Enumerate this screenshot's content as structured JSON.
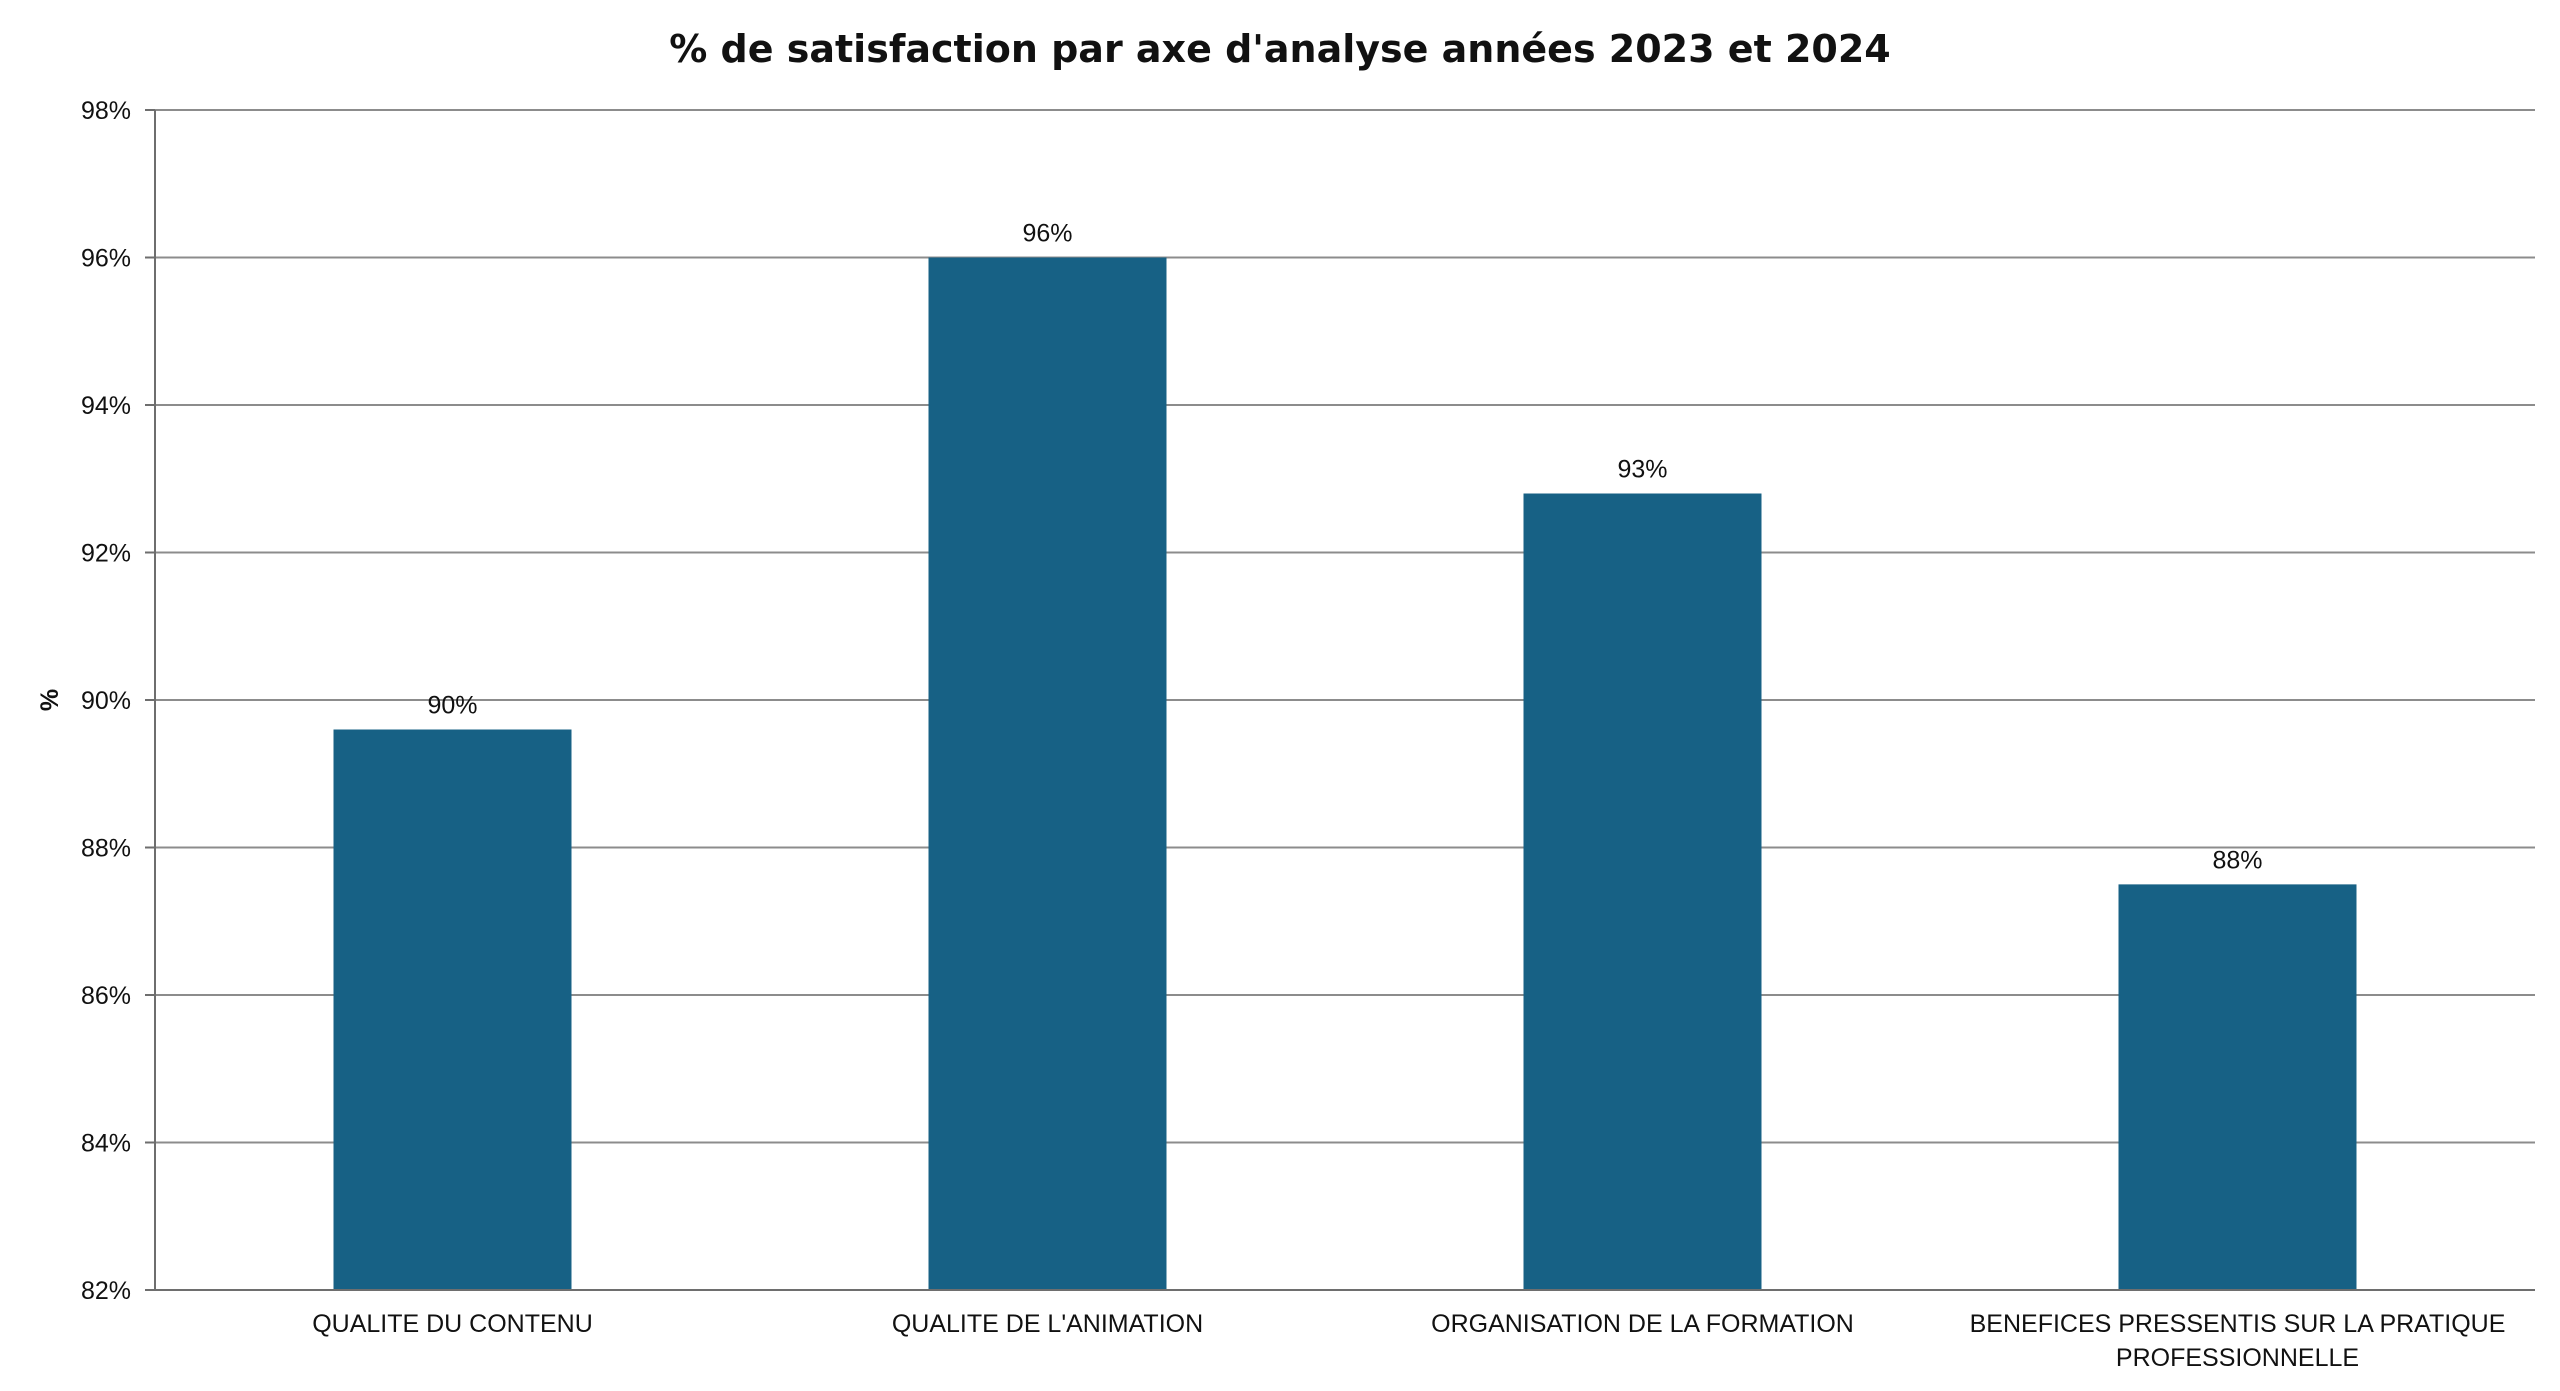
{
  "chart_data": {
    "type": "bar",
    "title": "% de satisfaction par axe d'analyse années 2023 et 2024",
    "ylabel": "%",
    "xlabel": "",
    "categories": [
      [
        "QUALITE DU CONTENU"
      ],
      [
        "QUALITE DE L'ANIMATION"
      ],
      [
        "ORGANISATION DE LA FORMATION"
      ],
      [
        "BENEFICES PRESSENTIS SUR LA PRATIQUE",
        "PROFESSIONNELLE"
      ]
    ],
    "values": [
      89.6,
      96.0,
      92.8,
      87.5
    ],
    "data_labels": [
      "90%",
      "96%",
      "93%",
      "88%"
    ],
    "ylim": [
      82,
      98
    ],
    "yticks": [
      82,
      84,
      86,
      88,
      90,
      92,
      94,
      96,
      98
    ],
    "ytick_labels": [
      "82%",
      "84%",
      "86%",
      "88%",
      "90%",
      "92%",
      "94%",
      "96%",
      "98%"
    ],
    "grid": true,
    "legend": "none",
    "colors": {
      "bar": "#176185",
      "grid": "#8c8c8c",
      "axis": "#6e6e6e",
      "text": "#111111"
    }
  }
}
